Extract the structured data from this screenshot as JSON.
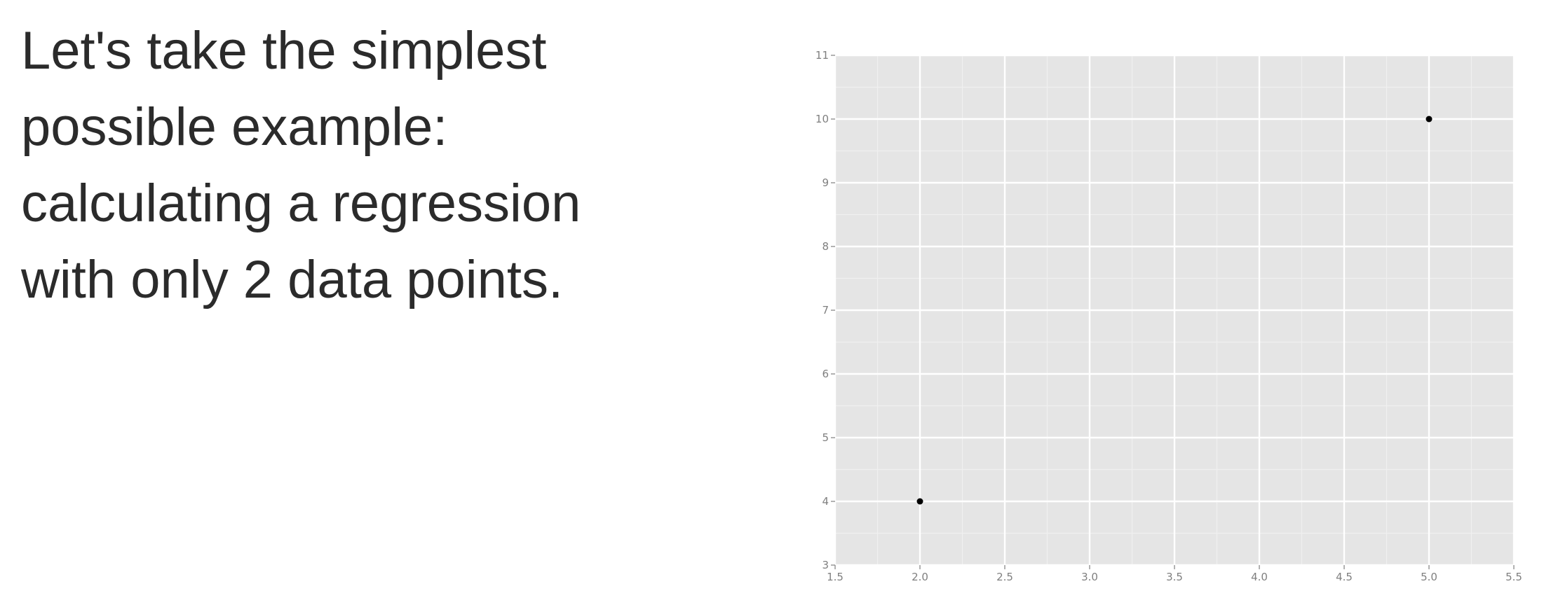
{
  "slide": {
    "lines": [
      "Let's take the simplest",
      "possible example:",
      "calculating a regression",
      "with only 2 data points."
    ]
  },
  "chart_data": {
    "type": "scatter",
    "title": "",
    "xlabel": "",
    "ylabel": "",
    "xlim": [
      1.5,
      5.5
    ],
    "ylim": [
      3,
      11
    ],
    "x_ticks": [
      1.5,
      2.0,
      2.5,
      3.0,
      3.5,
      4.0,
      4.5,
      5.0,
      5.5
    ],
    "y_ticks": [
      3,
      4,
      5,
      6,
      7,
      8,
      9,
      10,
      11
    ],
    "x_tick_labels": [
      "1.5",
      "2.0",
      "2.5",
      "3.0",
      "3.5",
      "4.0",
      "4.5",
      "5.0",
      "5.5"
    ],
    "y_tick_labels": [
      "3",
      "4",
      "5",
      "6",
      "7",
      "8",
      "9",
      "10",
      "11"
    ],
    "grid": true,
    "panel_color": "#e5e5e5",
    "grid_color": "#ffffff",
    "point_color": "#000000",
    "points": [
      {
        "x": 2.0,
        "y": 4
      },
      {
        "x": 5.0,
        "y": 10
      }
    ]
  }
}
